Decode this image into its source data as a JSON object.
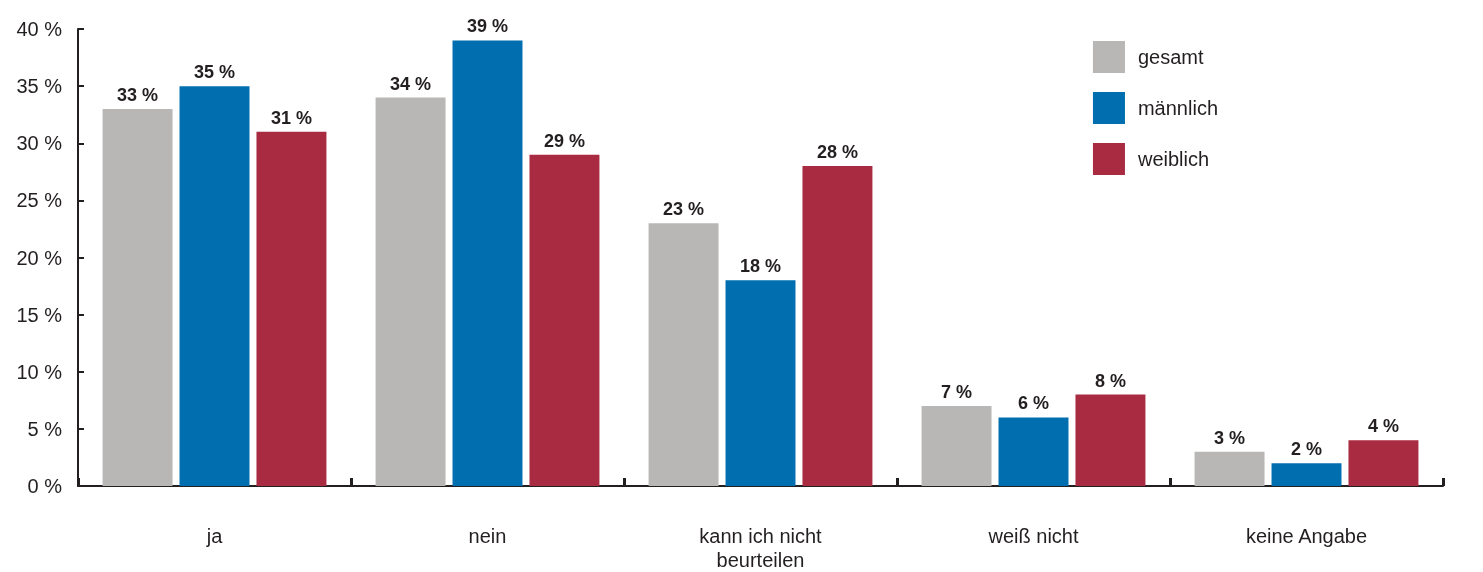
{
  "chart_data": {
    "type": "bar",
    "categories": [
      "ja",
      "nein",
      "kann ich nicht\nbeurteilen",
      "weiß nicht",
      "keine Angabe"
    ],
    "series": [
      {
        "name": "gesamt",
        "color": "#b8b7b5",
        "values": [
          33,
          34,
          23,
          7,
          3
        ],
        "value_labels": [
          "33 %",
          "34 %",
          "23 %",
          "7 %",
          "3 %"
        ]
      },
      {
        "name": "männlich",
        "color": "#006eaf",
        "values": [
          35,
          39,
          18,
          6,
          2
        ],
        "value_labels": [
          "35 %",
          "39 %",
          "18 %",
          "6 %",
          "2 %"
        ]
      },
      {
        "name": "weiblich",
        "color": "#a82b42",
        "values": [
          31,
          29,
          28,
          8,
          4
        ],
        "value_labels": [
          "31 %",
          "29 %",
          "28 %",
          "8 %",
          "4 %"
        ]
      }
    ],
    "ylim": [
      0,
      40
    ],
    "yticks": [
      {
        "value": 0,
        "label": "0 %"
      },
      {
        "value": 5,
        "label": "5 %"
      },
      {
        "value": 10,
        "label": "10 %"
      },
      {
        "value": 15,
        "label": "15 %"
      },
      {
        "value": 20,
        "label": "20 %"
      },
      {
        "value": 25,
        "label": "25 %"
      },
      {
        "value": 30,
        "label": "30 %"
      },
      {
        "value": 35,
        "label": "35 %"
      },
      {
        "value": 40,
        "label": "40 %"
      }
    ],
    "grid": false,
    "legend": "top right"
  }
}
